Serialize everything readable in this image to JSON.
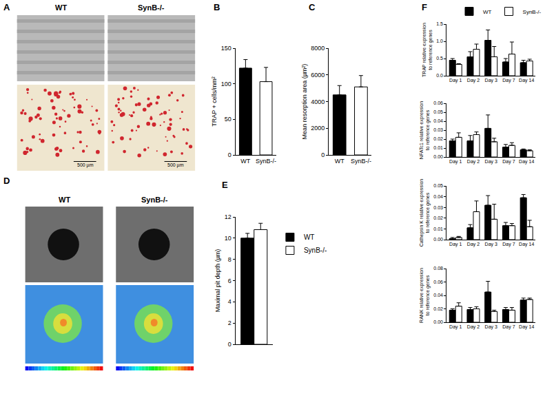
{
  "panel_labels": [
    "A",
    "B",
    "C",
    "D",
    "E",
    "F"
  ],
  "images": {
    "A": {
      "columns": [
        "WT",
        "SynB-/-"
      ],
      "scale_bar": "500 µm"
    },
    "D": {
      "columns": [
        "WT",
        "SynB-/-"
      ]
    }
  },
  "chart_data": [
    {
      "type": "bar",
      "categories": [
        "WT",
        "SynB-/-"
      ],
      "values": [
        122,
        103
      ],
      "error": [
        12,
        20
      ],
      "colors": [
        "#000000",
        "#ffffff"
      ],
      "y_label": "TRAP + cells/mm²",
      "ylim": [
        0,
        150
      ],
      "yticks": [
        0,
        50,
        100,
        150
      ],
      "grid": false
    },
    {
      "type": "bar",
      "categories": [
        "WT",
        "SynB-/-"
      ],
      "values": [
        4500,
        5100
      ],
      "error": [
        700,
        850
      ],
      "colors": [
        "#000000",
        "#ffffff"
      ],
      "y_label": "Mean resorption area (µm²)",
      "ylim": [
        0,
        8000
      ],
      "yticks": [
        0,
        2000,
        4000,
        6000,
        8000
      ],
      "grid": false
    },
    {
      "type": "bar",
      "categories": [
        null
      ],
      "y_label": "Maximal pit depth (µm)",
      "series": [
        {
          "name": "WT",
          "color": "#000000",
          "values": [
            10.0
          ],
          "error": [
            0.45
          ]
        },
        {
          "name": "SynB-/-",
          "color": "#ffffff",
          "values": [
            10.8
          ],
          "error": [
            0.6
          ]
        }
      ],
      "ylim": [
        0,
        12
      ],
      "yticks": [
        0,
        2,
        4,
        6,
        8,
        10,
        12
      ],
      "grid": false,
      "legend": "right",
      "tick_labels": "y"
    },
    {
      "type": "bar",
      "categories": [
        "Day 1",
        "Day 2",
        "Day 3",
        "Day 7",
        "Day 14"
      ],
      "y_label": "TRAP relative expression\nto reference genes",
      "series": [
        {
          "name": "WT",
          "color": "#000000",
          "values": [
            0.45,
            0.55,
            1.03,
            0.4,
            0.38
          ],
          "error": [
            0.05,
            0.15,
            0.3,
            0.1,
            0.07
          ]
        },
        {
          "name": "SynB-/-",
          "color": "#ffffff",
          "values": [
            0.33,
            0.77,
            0.55,
            0.63,
            0.43
          ],
          "error": [
            0.02,
            0.15,
            0.3,
            0.35,
            0.05
          ]
        }
      ],
      "ylim": [
        0,
        1.5
      ],
      "yticks": [
        {
          "value": 0,
          "label": "0.0"
        },
        0.5,
        {
          "value": 1,
          "label": "1.0"
        },
        1.5
      ],
      "grid": false,
      "legend": "top right"
    },
    {
      "type": "bar",
      "categories": [
        "Day 1",
        "Day 2",
        "Day 3",
        "Day 7",
        "Day 14"
      ],
      "y_label": "NFATc1 relative expression\nto reference genes",
      "series": [
        {
          "name": "WT",
          "color": "#000000",
          "values": [
            0.018,
            0.018,
            0.032,
            0.011,
            0.008
          ],
          "error": [
            0.002,
            0.006,
            0.015,
            0.003,
            0.001
          ]
        },
        {
          "name": "SynB-/-",
          "color": "#ffffff",
          "values": [
            0.022,
            0.025,
            0.017,
            0.013,
            0.007
          ],
          "error": [
            0.005,
            0.003,
            0.004,
            0.003,
            0.001
          ]
        }
      ],
      "ylim": [
        0,
        0.06
      ],
      "yticks": [
        {
          "value": 0,
          "label": "0.00"
        },
        0.01,
        0.02,
        0.03,
        0.04,
        0.05,
        0.06
      ],
      "grid": false
    },
    {
      "type": "bar",
      "categories": [
        "Day 1",
        "Day 2",
        "Day 3",
        "Day 7",
        "Day 14"
      ],
      "y_label": "Cathepsin K relative expression\nto reference genes",
      "series": [
        {
          "name": "WT",
          "color": "#000000",
          "values": [
            0.001,
            0.011,
            0.032,
            0.013,
            0.039
          ],
          "error": [
            0.001,
            0.003,
            0.009,
            0.003,
            0.003
          ]
        },
        {
          "name": "SynB-/-",
          "color": "#ffffff",
          "values": [
            0.002,
            0.026,
            0.019,
            0.013,
            0.012
          ],
          "error": [
            0.001,
            0.01,
            0.014,
            0.002,
            0.006
          ]
        }
      ],
      "ylim": [
        0,
        0.05
      ],
      "yticks": [
        {
          "value": 0,
          "label": "0.00"
        },
        0.01,
        0.02,
        0.03,
        0.04,
        0.05
      ],
      "grid": false
    },
    {
      "type": "bar",
      "categories": [
        "Day 1",
        "Day 2",
        "Day 3",
        "Day 7",
        "Day 14"
      ],
      "y_label": "RANK relative expression\nto reference genes",
      "series": [
        {
          "name": "WT",
          "color": "#000000",
          "values": [
            0.018,
            0.019,
            0.045,
            0.019,
            0.033
          ],
          "error": [
            0.002,
            0.003,
            0.016,
            0.003,
            0.003
          ]
        },
        {
          "name": "SynB-/-",
          "color": "#ffffff",
          "values": [
            0.024,
            0.02,
            0.016,
            0.018,
            0.034
          ],
          "error": [
            0.005,
            0.003,
            0.002,
            0.004,
            0.002
          ]
        }
      ],
      "ylim": [
        0,
        0.08
      ],
      "yticks": [
        {
          "value": 0,
          "label": "0.00"
        },
        0.02,
        0.04,
        0.06,
        0.08
      ],
      "grid": false
    }
  ]
}
